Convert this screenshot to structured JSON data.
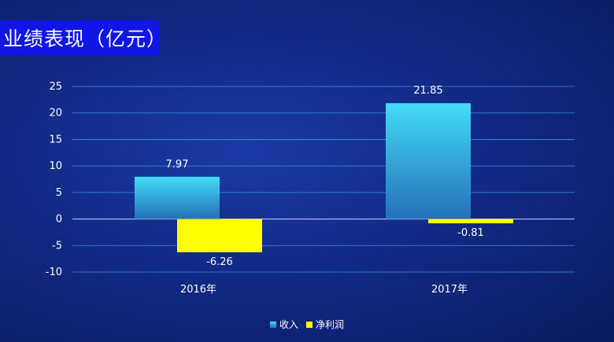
{
  "header": {
    "title": "业绩表现（亿元）"
  },
  "chart_data": {
    "type": "bar",
    "categories": [
      "2016年",
      "2017年"
    ],
    "series": [
      {
        "name": "收入",
        "values": [
          7.97,
          21.85
        ],
        "color": "#3fd3f2"
      },
      {
        "name": "净利润",
        "values": [
          -6.26,
          -0.81
        ],
        "color": "#ffff00"
      }
    ],
    "data_labels": [
      [
        "7.97",
        "21.85"
      ],
      [
        "-6.26",
        "-0.81"
      ]
    ],
    "ylim": [
      -10,
      25
    ],
    "yticks": [
      25,
      20,
      15,
      10,
      5,
      0,
      -5,
      -10
    ],
    "ytick_labels": [
      "25",
      "20",
      "15",
      "10",
      "5",
      "0",
      "-5",
      "-10"
    ],
    "grid": true,
    "legend_position": "bottom"
  }
}
